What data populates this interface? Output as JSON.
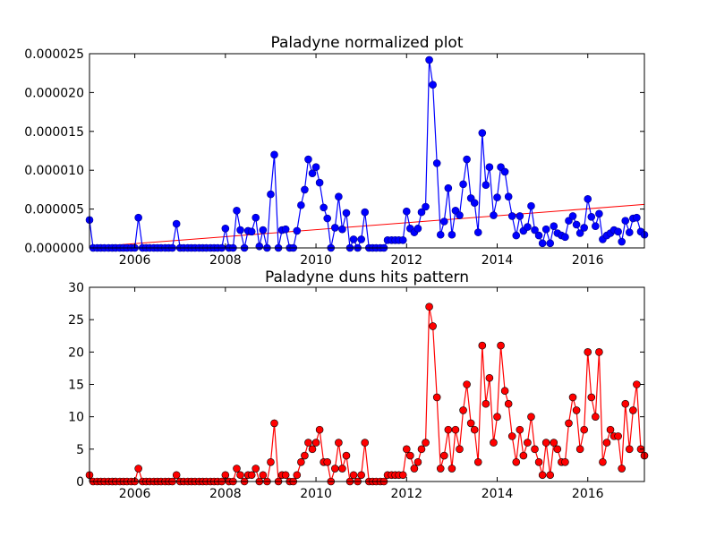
{
  "figure": {
    "background": "#ffffff"
  },
  "chart_data": [
    {
      "type": "line",
      "title": "Paladyne normalized plot",
      "xlabel": "",
      "ylabel": "",
      "xlim": [
        2005.0,
        2017.25
      ],
      "ylim": [
        0,
        2.5e-05
      ],
      "x_ticks": [
        2006,
        2008,
        2010,
        2012,
        2014,
        2016
      ],
      "y_ticks": [
        0,
        5e-06,
        1e-05,
        1.5e-05,
        2e-05,
        2.5e-05
      ],
      "x_tick_labels": [
        "2006",
        "2008",
        "2010",
        "2012",
        "2014",
        "2016"
      ],
      "y_tick_labels": [
        "0.000000",
        "0.000005",
        "0.000010",
        "0.000015",
        "0.000020",
        "0.000025"
      ],
      "grid": false,
      "color": "#0000ff",
      "trend_color": "#ff0000",
      "trend_line": {
        "x": [
          2005.0,
          2017.25
        ],
        "y": [
          1e-07,
          5.6e-06
        ]
      },
      "series": [
        {
          "x": [
            2005.0,
            2005.08,
            2005.17,
            2005.25,
            2005.33,
            2005.42,
            2005.5,
            2005.58,
            2005.67,
            2005.75,
            2005.83,
            2005.92,
            2006.0,
            2006.08,
            2006.17,
            2006.25,
            2006.33,
            2006.42,
            2006.5,
            2006.58,
            2006.67,
            2006.75,
            2006.83,
            2006.92,
            2007.0,
            2007.08,
            2007.17,
            2007.25,
            2007.33,
            2007.42,
            2007.5,
            2007.58,
            2007.67,
            2007.75,
            2007.83,
            2007.92,
            2008.0,
            2008.08,
            2008.17,
            2008.25,
            2008.33,
            2008.42,
            2008.5,
            2008.58,
            2008.67,
            2008.75,
            2008.83,
            2008.92,
            2009.0,
            2009.08,
            2009.17,
            2009.25,
            2009.33,
            2009.42,
            2009.5,
            2009.58,
            2009.67,
            2009.75,
            2009.83,
            2009.92,
            2010.0,
            2010.08,
            2010.17,
            2010.25,
            2010.33,
            2010.42,
            2010.5,
            2010.58,
            2010.67,
            2010.75,
            2010.83,
            2010.92,
            2011.0,
            2011.08,
            2011.17,
            2011.25,
            2011.33,
            2011.42,
            2011.5,
            2011.58,
            2011.67,
            2011.75,
            2011.83,
            2011.92,
            2012.0,
            2012.08,
            2012.17,
            2012.25,
            2012.33,
            2012.42,
            2012.5,
            2012.58,
            2012.67,
            2012.75,
            2012.83,
            2012.92,
            2013.0,
            2013.08,
            2013.17,
            2013.25,
            2013.33,
            2013.42,
            2013.5,
            2013.58,
            2013.67,
            2013.75,
            2013.83,
            2013.92,
            2014.0,
            2014.08,
            2014.17,
            2014.25,
            2014.33,
            2014.42,
            2014.5,
            2014.58,
            2014.67,
            2014.75,
            2014.83,
            2014.92,
            2015.0,
            2015.08,
            2015.17,
            2015.25,
            2015.33,
            2015.42,
            2015.5,
            2015.58,
            2015.67,
            2015.75,
            2015.83,
            2015.92,
            2016.0,
            2016.08,
            2016.17,
            2016.25,
            2016.33,
            2016.42,
            2016.5,
            2016.58,
            2016.67,
            2016.75,
            2016.83,
            2016.92,
            2017.0,
            2017.08,
            2017.17,
            2017.25
          ],
          "values": [
            3.6e-06,
            0,
            0,
            0,
            0,
            0,
            0,
            0,
            0,
            0,
            0,
            0,
            0,
            3.9e-06,
            0,
            0,
            0,
            0,
            0,
            0,
            0,
            0,
            0,
            3.1e-06,
            0,
            0,
            0,
            0,
            0,
            0,
            0,
            0,
            0,
            0,
            0,
            0,
            2.5e-06,
            0,
            0,
            4.8e-06,
            2.3e-06,
            0,
            2.2e-06,
            2.1e-06,
            3.9e-06,
            2e-07,
            2.3e-06,
            0,
            6.9e-06,
            1.2e-05,
            0,
            2.3e-06,
            2.4e-06,
            0,
            0,
            2.2e-06,
            5.5e-06,
            7.5e-06,
            1.14e-05,
            9.6e-06,
            1.04e-05,
            8.4e-06,
            5.2e-06,
            3.8e-06,
            0,
            2.6e-06,
            6.6e-06,
            2.4e-06,
            4.5e-06,
            0,
            1.1e-06,
            0,
            1.1e-06,
            4.6e-06,
            0,
            0,
            0,
            0,
            0,
            1e-06,
            1e-06,
            1e-06,
            1e-06,
            1e-06,
            4.7e-06,
            2.5e-06,
            2e-06,
            2.5e-06,
            4.6e-06,
            5.3e-06,
            2.42e-05,
            2.1e-05,
            1.09e-05,
            1.7e-06,
            3.4e-06,
            7.7e-06,
            1.7e-06,
            4.8e-06,
            4.2e-06,
            8.2e-06,
            1.14e-05,
            6.4e-06,
            5.8e-06,
            2e-06,
            1.48e-05,
            8.1e-06,
            1.04e-05,
            4.2e-06,
            6.5e-06,
            1.04e-05,
            9.8e-06,
            6.6e-06,
            4.1e-06,
            1.6e-06,
            4.1e-06,
            2.2e-06,
            2.7e-06,
            5.4e-06,
            2.3e-06,
            1.6e-06,
            6e-07,
            2.4e-06,
            6e-07,
            2.8e-06,
            1.9e-06,
            1.6e-06,
            1.4e-06,
            3.5e-06,
            4.1e-06,
            3e-06,
            1.9e-06,
            2.6e-06,
            6.3e-06,
            4e-06,
            2.8e-06,
            4.4e-06,
            1.1e-06,
            1.6e-06,
            1.9e-06,
            2.3e-06,
            2.1e-06,
            8e-07,
            3.5e-06,
            2e-06,
            3.8e-06,
            3.9e-06,
            2.1e-06,
            1.7e-06
          ]
        }
      ]
    },
    {
      "type": "line",
      "title": "Paladyne duns hits pattern",
      "xlabel": "",
      "ylabel": "",
      "xlim": [
        2005.0,
        2017.25
      ],
      "ylim": [
        0,
        30
      ],
      "x_ticks": [
        2006,
        2008,
        2010,
        2012,
        2014,
        2016
      ],
      "y_ticks": [
        0,
        5,
        10,
        15,
        20,
        25,
        30
      ],
      "x_tick_labels": [
        "2006",
        "2008",
        "2010",
        "2012",
        "2014",
        "2016"
      ],
      "y_tick_labels": [
        "0",
        "5",
        "10",
        "15",
        "20",
        "25",
        "30"
      ],
      "grid": false,
      "color": "#ff0000",
      "series": [
        {
          "x": [
            2005.0,
            2005.08,
            2005.17,
            2005.25,
            2005.33,
            2005.42,
            2005.5,
            2005.58,
            2005.67,
            2005.75,
            2005.83,
            2005.92,
            2006.0,
            2006.08,
            2006.17,
            2006.25,
            2006.33,
            2006.42,
            2006.5,
            2006.58,
            2006.67,
            2006.75,
            2006.83,
            2006.92,
            2007.0,
            2007.08,
            2007.17,
            2007.25,
            2007.33,
            2007.42,
            2007.5,
            2007.58,
            2007.67,
            2007.75,
            2007.83,
            2007.92,
            2008.0,
            2008.08,
            2008.17,
            2008.25,
            2008.33,
            2008.42,
            2008.5,
            2008.58,
            2008.67,
            2008.75,
            2008.83,
            2008.92,
            2009.0,
            2009.08,
            2009.17,
            2009.25,
            2009.33,
            2009.42,
            2009.5,
            2009.58,
            2009.67,
            2009.75,
            2009.83,
            2009.92,
            2010.0,
            2010.08,
            2010.17,
            2010.25,
            2010.33,
            2010.42,
            2010.5,
            2010.58,
            2010.67,
            2010.75,
            2010.83,
            2010.92,
            2011.0,
            2011.08,
            2011.17,
            2011.25,
            2011.33,
            2011.42,
            2011.5,
            2011.58,
            2011.67,
            2011.75,
            2011.83,
            2011.92,
            2012.0,
            2012.08,
            2012.17,
            2012.25,
            2012.33,
            2012.42,
            2012.5,
            2012.58,
            2012.67,
            2012.75,
            2012.83,
            2012.92,
            2013.0,
            2013.08,
            2013.17,
            2013.25,
            2013.33,
            2013.42,
            2013.5,
            2013.58,
            2013.67,
            2013.75,
            2013.83,
            2013.92,
            2014.0,
            2014.08,
            2014.17,
            2014.25,
            2014.33,
            2014.42,
            2014.5,
            2014.58,
            2014.67,
            2014.75,
            2014.83,
            2014.92,
            2015.0,
            2015.08,
            2015.17,
            2015.25,
            2015.33,
            2015.42,
            2015.5,
            2015.58,
            2015.67,
            2015.75,
            2015.83,
            2015.92,
            2016.0,
            2016.08,
            2016.17,
            2016.25,
            2016.33,
            2016.42,
            2016.5,
            2016.58,
            2016.67,
            2016.75,
            2016.83,
            2016.92,
            2017.0,
            2017.08,
            2017.17,
            2017.25
          ],
          "values": [
            1,
            0,
            0,
            0,
            0,
            0,
            0,
            0,
            0,
            0,
            0,
            0,
            0,
            2,
            0,
            0,
            0,
            0,
            0,
            0,
            0,
            0,
            0,
            1,
            0,
            0,
            0,
            0,
            0,
            0,
            0,
            0,
            0,
            0,
            0,
            0,
            1,
            0,
            0,
            2,
            1,
            0,
            1,
            1,
            2,
            0,
            1,
            0,
            3,
            9,
            0,
            1,
            1,
            0,
            0,
            1,
            3,
            4,
            6,
            5,
            6,
            8,
            3,
            3,
            0,
            2,
            6,
            2,
            4,
            0,
            1,
            0,
            1,
            6,
            0,
            0,
            0,
            0,
            0,
            1,
            1,
            1,
            1,
            1,
            5,
            4,
            2,
            3,
            5,
            6,
            27,
            24,
            13,
            2,
            4,
            8,
            2,
            8,
            5,
            11,
            15,
            9,
            8,
            3,
            21,
            12,
            16,
            6,
            10,
            21,
            14,
            12,
            7,
            3,
            8,
            4,
            6,
            10,
            5,
            3,
            1,
            6,
            1,
            6,
            5,
            3,
            3,
            9,
            13,
            11,
            5,
            8,
            20,
            13,
            10,
            20,
            3,
            6,
            8,
            7,
            7,
            2,
            12,
            5,
            11,
            15,
            5,
            4
          ]
        }
      ]
    }
  ]
}
